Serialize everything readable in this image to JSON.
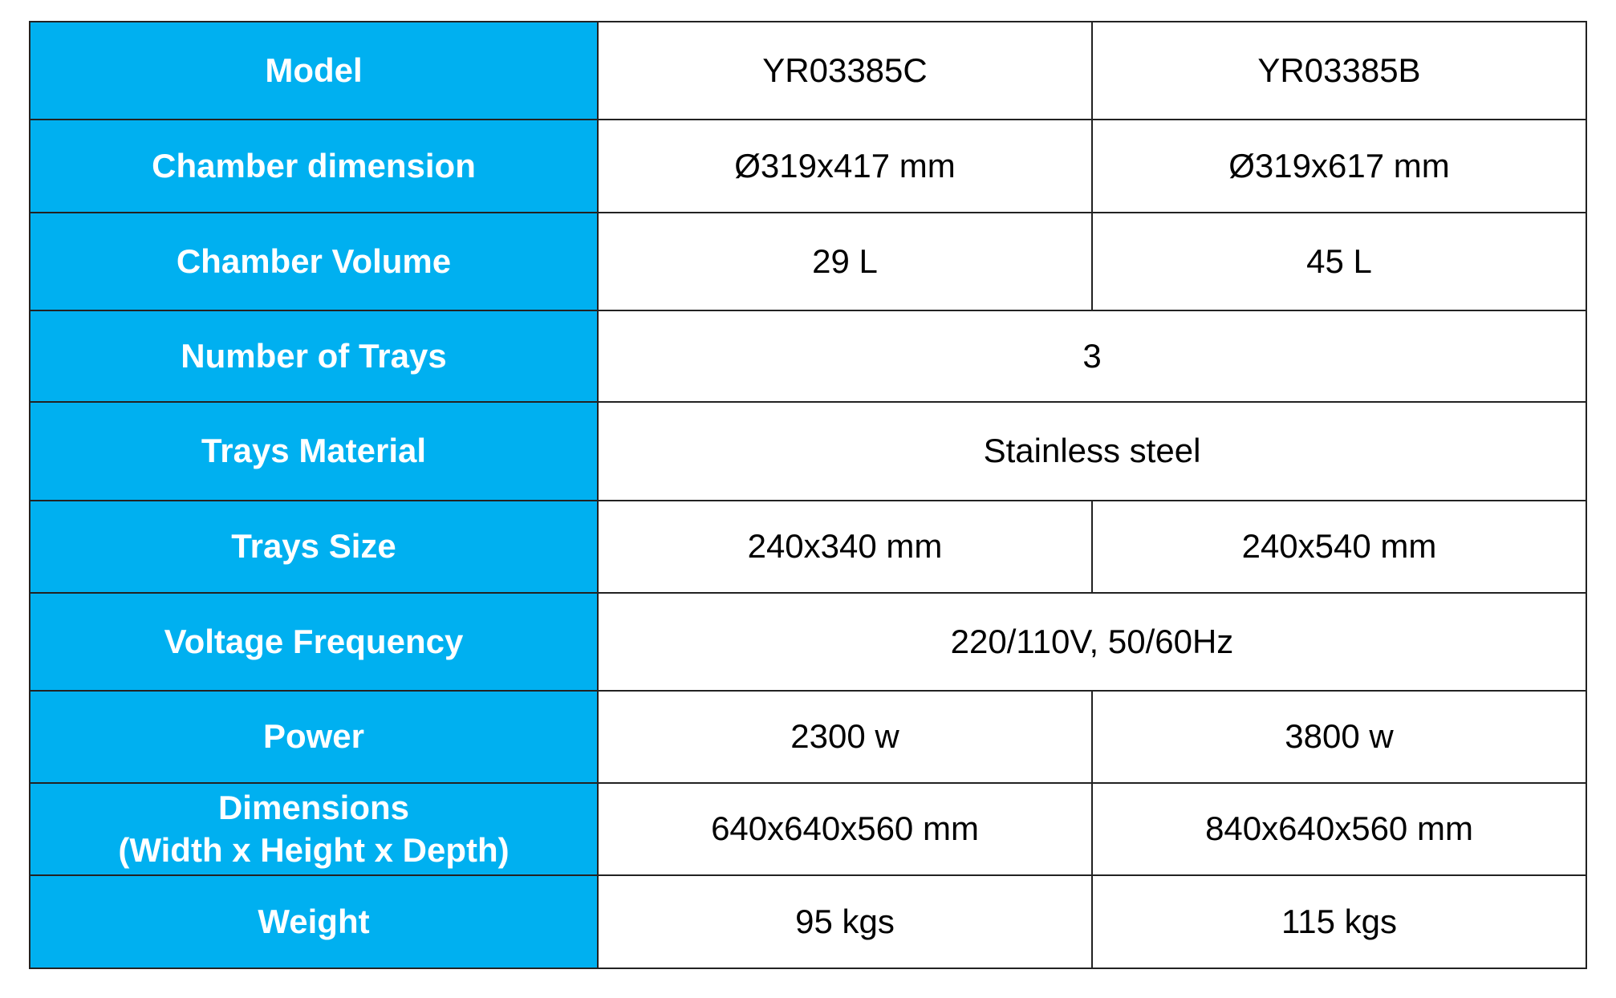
{
  "table": {
    "rows": [
      {
        "label": "Model",
        "values": [
          "YR03385C",
          "YR03385B"
        ]
      },
      {
        "label": "Chamber dimension",
        "values": [
          "Ø319x417 mm",
          "Ø319x617 mm"
        ]
      },
      {
        "label": "Chamber Volume",
        "values": [
          "29 L",
          "45 L"
        ]
      },
      {
        "label": "Number of Trays",
        "values": [
          "3"
        ]
      },
      {
        "label": "Trays Material",
        "values": [
          "Stainless steel"
        ]
      },
      {
        "label": "Trays Size",
        "values": [
          "240x340 mm",
          "240x540 mm"
        ]
      },
      {
        "label": "Voltage Frequency",
        "values": [
          "220/110V, 50/60Hz"
        ]
      },
      {
        "label": "Power",
        "values": [
          "2300 w",
          "3800 w"
        ]
      },
      {
        "label": "Dimensions\n(Width x Height x Depth)",
        "values": [
          "640x640x560 mm",
          "840x640x560 mm"
        ]
      },
      {
        "label": "Weight",
        "values": [
          "95 kgs",
          "115 kgs"
        ]
      }
    ]
  }
}
